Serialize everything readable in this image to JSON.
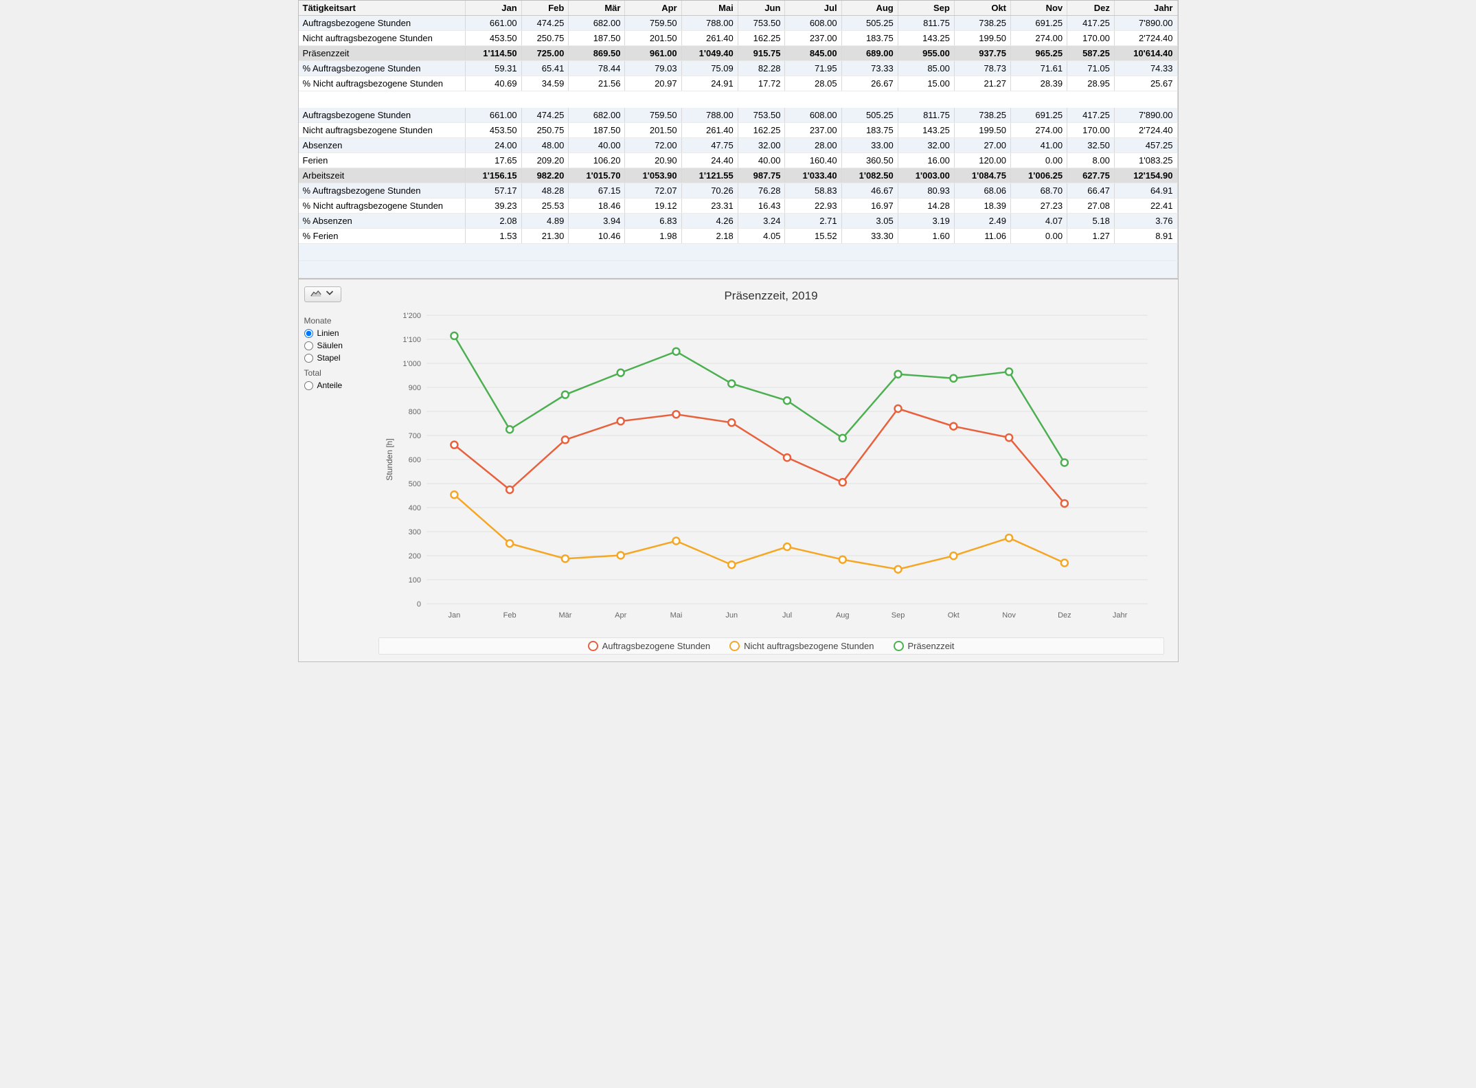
{
  "table": {
    "header_first": "Tätigkeitsart",
    "months": [
      "Jan",
      "Feb",
      "Mär",
      "Apr",
      "Mai",
      "Jun",
      "Jul",
      "Aug",
      "Sep",
      "Okt",
      "Nov",
      "Dez",
      "Jahr"
    ],
    "rows": [
      {
        "label": "Auftragsbezogene Stunden",
        "cells": [
          "661.00",
          "474.25",
          "682.00",
          "759.50",
          "788.00",
          "753.50",
          "608.00",
          "505.25",
          "811.75",
          "738.25",
          "691.25",
          "417.25",
          "7'890.00"
        ],
        "cls": "alt"
      },
      {
        "label": "Nicht auftragsbezogene Stunden",
        "cells": [
          "453.50",
          "250.75",
          "187.50",
          "201.50",
          "261.40",
          "162.25",
          "237.00",
          "183.75",
          "143.25",
          "199.50",
          "274.00",
          "170.00",
          "2'724.40"
        ],
        "cls": ""
      },
      {
        "label": "Präsenzzeit",
        "cells": [
          "1'114.50",
          "725.00",
          "869.50",
          "961.00",
          "1'049.40",
          "915.75",
          "845.00",
          "689.00",
          "955.00",
          "937.75",
          "965.25",
          "587.25",
          "10'614.40"
        ],
        "cls": "bold"
      },
      {
        "label": "% Auftragsbezogene Stunden",
        "cells": [
          "59.31",
          "65.41",
          "78.44",
          "79.03",
          "75.09",
          "82.28",
          "71.95",
          "73.33",
          "85.00",
          "78.73",
          "71.61",
          "71.05",
          "74.33"
        ],
        "cls": "alt"
      },
      {
        "label": "% Nicht auftragsbezogene Stunden",
        "cells": [
          "40.69",
          "34.59",
          "21.56",
          "20.97",
          "24.91",
          "17.72",
          "28.05",
          "26.67",
          "15.00",
          "21.27",
          "28.39",
          "28.95",
          "25.67"
        ],
        "cls": ""
      },
      {
        "blank": true
      },
      {
        "label": "Auftragsbezogene Stunden",
        "cells": [
          "661.00",
          "474.25",
          "682.00",
          "759.50",
          "788.00",
          "753.50",
          "608.00",
          "505.25",
          "811.75",
          "738.25",
          "691.25",
          "417.25",
          "7'890.00"
        ],
        "cls": "alt"
      },
      {
        "label": "Nicht auftragsbezogene Stunden",
        "cells": [
          "453.50",
          "250.75",
          "187.50",
          "201.50",
          "261.40",
          "162.25",
          "237.00",
          "183.75",
          "143.25",
          "199.50",
          "274.00",
          "170.00",
          "2'724.40"
        ],
        "cls": ""
      },
      {
        "label": "Absenzen",
        "cells": [
          "24.00",
          "48.00",
          "40.00",
          "72.00",
          "47.75",
          "32.00",
          "28.00",
          "33.00",
          "32.00",
          "27.00",
          "41.00",
          "32.50",
          "457.25"
        ],
        "cls": "alt"
      },
      {
        "label": "Ferien",
        "cells": [
          "17.65",
          "209.20",
          "106.20",
          "20.90",
          "24.40",
          "40.00",
          "160.40",
          "360.50",
          "16.00",
          "120.00",
          "0.00",
          "8.00",
          "1'083.25"
        ],
        "cls": ""
      },
      {
        "label": "Arbeitszeit",
        "cells": [
          "1'156.15",
          "982.20",
          "1'015.70",
          "1'053.90",
          "1'121.55",
          "987.75",
          "1'033.40",
          "1'082.50",
          "1'003.00",
          "1'084.75",
          "1'006.25",
          "627.75",
          "12'154.90"
        ],
        "cls": "bold"
      },
      {
        "label": "% Auftragsbezogene Stunden",
        "cells": [
          "57.17",
          "48.28",
          "67.15",
          "72.07",
          "70.26",
          "76.28",
          "58.83",
          "46.67",
          "80.93",
          "68.06",
          "68.70",
          "66.47",
          "64.91"
        ],
        "cls": "alt"
      },
      {
        "label": "% Nicht auftragsbezogene Stunden",
        "cells": [
          "39.23",
          "25.53",
          "18.46",
          "19.12",
          "23.31",
          "16.43",
          "22.93",
          "16.97",
          "14.28",
          "18.39",
          "27.23",
          "27.08",
          "22.41"
        ],
        "cls": ""
      },
      {
        "label": "% Absenzen",
        "cells": [
          "2.08",
          "4.89",
          "3.94",
          "6.83",
          "4.26",
          "3.24",
          "2.71",
          "3.05",
          "3.19",
          "2.49",
          "4.07",
          "5.18",
          "3.76"
        ],
        "cls": "alt"
      },
      {
        "label": "% Ferien",
        "cells": [
          "1.53",
          "21.30",
          "10.46",
          "1.98",
          "2.18",
          "4.05",
          "15.52",
          "33.30",
          "1.60",
          "11.06",
          "0.00",
          "1.27",
          "8.91"
        ],
        "cls": ""
      }
    ]
  },
  "sidebar": {
    "group1_title": "Monate",
    "opt_linien": "Linien",
    "opt_saeulen": "Säulen",
    "opt_stapel": "Stapel",
    "group2_title": "Total",
    "opt_anteile": "Anteile"
  },
  "chart": {
    "title": "Präsenzzeit, 2019",
    "ylabel": "Stunden [h]",
    "x_categories": [
      "Jan",
      "Feb",
      "Mär",
      "Apr",
      "Mai",
      "Jun",
      "Jul",
      "Aug",
      "Sep",
      "Okt",
      "Nov",
      "Dez",
      "Jahr"
    ],
    "ylim": [
      0,
      1200
    ],
    "ytick_step": 100,
    "series": [
      {
        "name": "Auftragsbezogene Stunden",
        "color": "#e8603c",
        "values": [
          661.0,
          474.25,
          682.0,
          759.5,
          788.0,
          753.5,
          608.0,
          505.25,
          811.75,
          738.25,
          691.25,
          417.25
        ]
      },
      {
        "name": "Nicht auftragsbezogene Stunden",
        "color": "#f5a623",
        "values": [
          453.5,
          250.75,
          187.5,
          201.5,
          261.4,
          162.25,
          237.0,
          183.75,
          143.25,
          199.5,
          274.0,
          170.0
        ]
      },
      {
        "name": "Präsenzzeit",
        "color": "#4caf50",
        "values": [
          1114.5,
          725.0,
          869.5,
          961.0,
          1049.4,
          915.75,
          845.0,
          689.0,
          955.0,
          937.75,
          965.25,
          587.25
        ]
      }
    ],
    "line_width": 2.5,
    "marker_radius": 5,
    "marker_fill": "#ffffff",
    "background": "#f3f3f3",
    "grid_color": "#e0e0e0"
  }
}
